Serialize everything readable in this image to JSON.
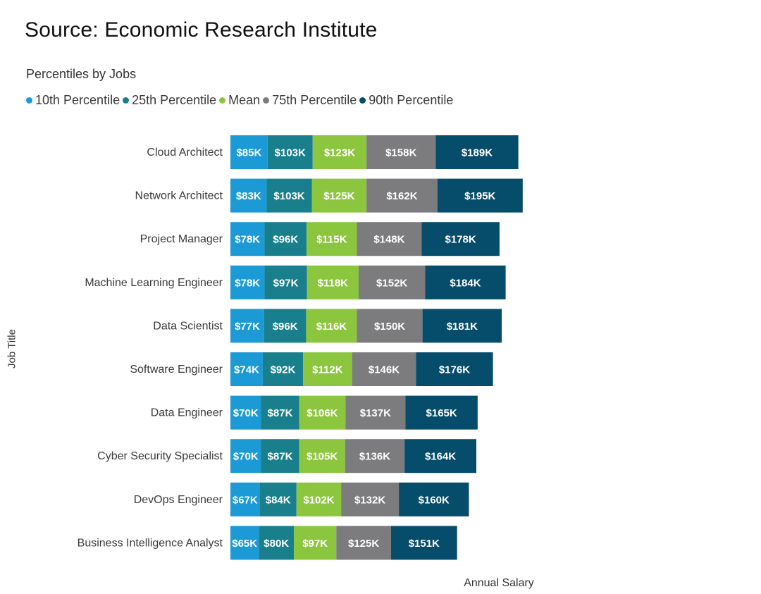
{
  "header": {
    "source": "Source: Economic Research Institute",
    "subtitle": "Percentiles by Jobs"
  },
  "chart_data": {
    "type": "bar",
    "orientation": "horizontal",
    "stacked": true,
    "categories": [
      "Cloud Architect",
      "Network Architect",
      "Project Manager",
      "Machine Learning Engineer",
      "Data Scientist",
      "Software Engineer",
      "Data Engineer",
      "Cyber Security Specialist",
      "DevOps Engineer",
      "Business Intelligence Analyst"
    ],
    "series": [
      {
        "name": "10th Percentile",
        "color": "#1b9ad6",
        "values": [
          85,
          83,
          78,
          78,
          77,
          74,
          70,
          70,
          67,
          65
        ]
      },
      {
        "name": "25th Percentile",
        "color": "#197f8c",
        "values": [
          103,
          103,
          96,
          97,
          96,
          92,
          87,
          87,
          84,
          80
        ]
      },
      {
        "name": "Mean",
        "color": "#8cc63f",
        "values": [
          123,
          125,
          115,
          118,
          116,
          112,
          106,
          105,
          102,
          97
        ]
      },
      {
        "name": "75th Percentile",
        "color": "#7c7c7e",
        "values": [
          158,
          162,
          148,
          152,
          150,
          146,
          137,
          136,
          132,
          125
        ]
      },
      {
        "name": "90th Percentile",
        "color": "#064c6b",
        "values": [
          189,
          195,
          178,
          184,
          181,
          176,
          165,
          164,
          160,
          151
        ]
      }
    ],
    "value_prefix": "$",
    "value_suffix": "K",
    "xlabel": "Annual Salary",
    "ylabel": "Job Title",
    "legend_position": "top-left",
    "grid": false
  }
}
